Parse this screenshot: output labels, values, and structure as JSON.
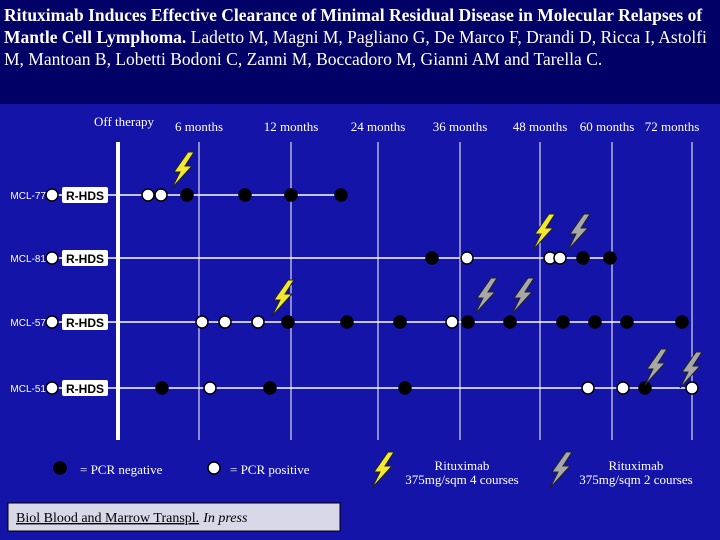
{
  "header": {
    "title": "Rituximab Induces Effective Clearance of Minimal Residual Disease in Molecular Relapses of Mantle Cell Lymphoma.",
    "authors": "Ladetto M, Magni M, Pagliano G, De Marco F, Drandi D, Ricca I, Astolfi M, Mantoan B, Lobetti Bodoni C, Zanni M, Boccadoro M, Gianni AM and Tarella C."
  },
  "timeline": {
    "start": "Off therapy",
    "timepoints": [
      "6 months",
      "12 months",
      "24 months",
      "36 months",
      "48 months",
      "60 months",
      "72 months"
    ]
  },
  "patients": [
    {
      "id": "MCL-77",
      "treatment": "R-HDS"
    },
    {
      "id": "MCL-81",
      "treatment": "R-HDS"
    },
    {
      "id": "MCL-57",
      "treatment": "R-HDS"
    },
    {
      "id": "MCL-51",
      "treatment": "R-HDS"
    }
  ],
  "legend": {
    "negative": "= PCR negative",
    "positive": "= PCR positive",
    "rituximab_4": {
      "drug": "Rituximab",
      "dose": "375mg/sqm 4 courses"
    },
    "rituximab_2": {
      "drug": "Rituximab",
      "dose": "375mg/sqm 2 courses"
    }
  },
  "citation": {
    "journal": "Biol Blood and Marrow Transpl.",
    "status": "In press"
  }
}
